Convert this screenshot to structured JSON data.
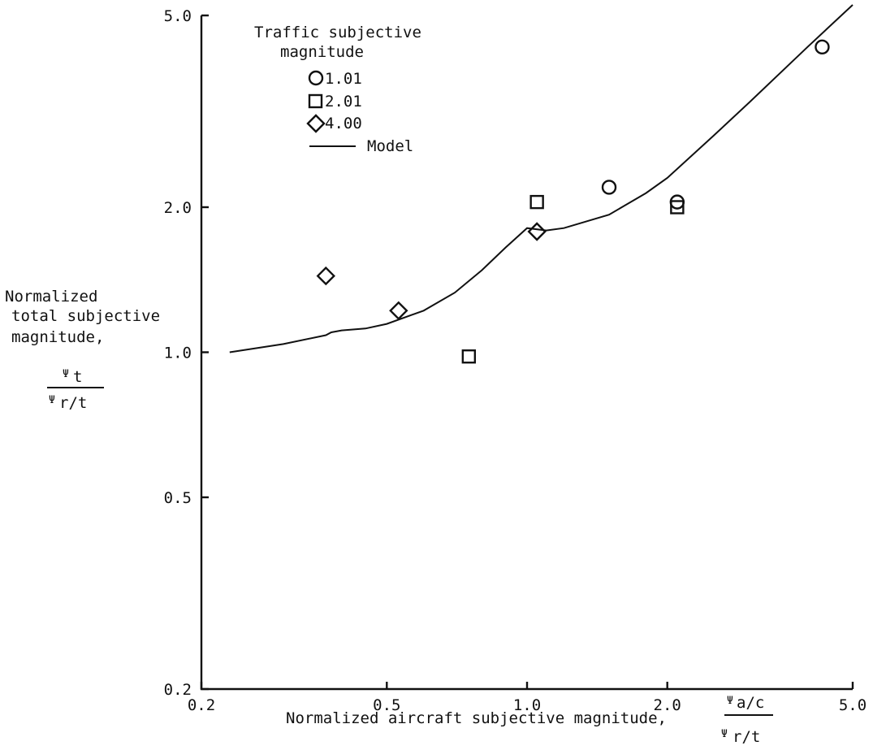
{
  "chart_data": {
    "type": "scatter",
    "xscale": "log",
    "yscale": "log",
    "xlim": [
      0.2,
      5.0
    ],
    "ylim": [
      0.2,
      5.0
    ],
    "grid": false,
    "xticks": [
      "0.2",
      "0.5",
      "1.0",
      "2.0",
      "5.0"
    ],
    "yticks": [
      "0.2",
      "0.5",
      "1.0",
      "2.0",
      "5.0"
    ],
    "xlabel": "Normalized aircraft subjective magnitude,",
    "xlabel_fraction": {
      "numerator_symbol": "Ψ",
      "numerator_sub": "a/c",
      "denominator_symbol": "Ψ",
      "denominator_sub": "r/t"
    },
    "ylabel_lines": [
      "Normalized",
      "total subjective",
      "magnitude,"
    ],
    "ylabel_fraction": {
      "numerator_symbol": "Ψ",
      "numerator_sub": "t",
      "denominator_symbol": "Ψ",
      "denominator_sub": "r/t"
    },
    "legend": {
      "title_lines": [
        "Traffic subjective",
        "magnitude"
      ],
      "placement": "top-left",
      "entries": [
        {
          "marker": "circle",
          "label": "1.01"
        },
        {
          "marker": "square",
          "label": "2.01"
        },
        {
          "marker": "diamond",
          "label": "4.00"
        },
        {
          "marker": "line",
          "label": "Model"
        }
      ]
    },
    "series": [
      {
        "name": "1.01",
        "marker": "circle",
        "points": [
          [
            1.5,
            2.2
          ],
          [
            2.1,
            2.05
          ],
          [
            4.3,
            4.3
          ]
        ]
      },
      {
        "name": "2.01",
        "marker": "square",
        "points": [
          [
            0.75,
            0.98
          ],
          [
            1.05,
            2.05
          ],
          [
            2.1,
            2.0
          ]
        ]
      },
      {
        "name": "4.00",
        "marker": "diamond",
        "points": [
          [
            0.37,
            1.44
          ],
          [
            0.53,
            1.22
          ],
          [
            1.05,
            1.78
          ]
        ]
      },
      {
        "name": "Model",
        "marker": "line",
        "points": [
          [
            0.23,
            1.0
          ],
          [
            0.3,
            1.04
          ],
          [
            0.37,
            1.085
          ],
          [
            0.38,
            1.1
          ],
          [
            0.4,
            1.11
          ],
          [
            0.45,
            1.12
          ],
          [
            0.5,
            1.145
          ],
          [
            0.6,
            1.22
          ],
          [
            0.7,
            1.33
          ],
          [
            0.8,
            1.48
          ],
          [
            0.9,
            1.65
          ],
          [
            1.0,
            1.81
          ],
          [
            1.1,
            1.79
          ],
          [
            1.2,
            1.81
          ],
          [
            1.5,
            1.93
          ],
          [
            1.8,
            2.14
          ],
          [
            2.0,
            2.3
          ],
          [
            2.5,
            2.8
          ],
          [
            3.0,
            3.3
          ],
          [
            4.0,
            4.3
          ],
          [
            5.0,
            5.3
          ]
        ]
      }
    ]
  }
}
